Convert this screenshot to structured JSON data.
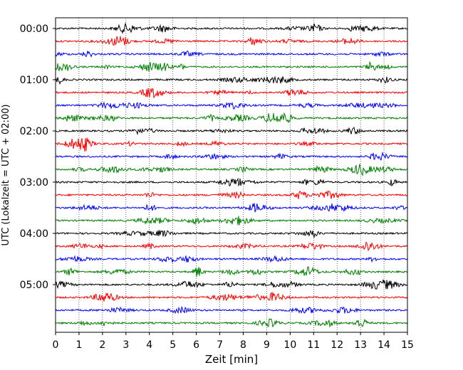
{
  "chart_data": {
    "type": "line",
    "title": "",
    "xlabel": "Zeit  [min]",
    "ylabel": "UTC (Lokalzeit = UTC + 02:00)",
    "xlim": [
      0,
      15
    ],
    "x_ticks": [
      0,
      1,
      2,
      3,
      4,
      5,
      6,
      7,
      8,
      9,
      10,
      11,
      12,
      13,
      14,
      15
    ],
    "y_tick_labels": [
      "00:00",
      "01:00",
      "02:00",
      "03:00",
      "04:00",
      "05:00"
    ],
    "trace_interval_min": 15,
    "trace_count": 24,
    "trace_colors": [
      "#000000",
      "#ff0000",
      "#0000ff",
      "#008000"
    ],
    "grid": "vertical-dotted"
  }
}
